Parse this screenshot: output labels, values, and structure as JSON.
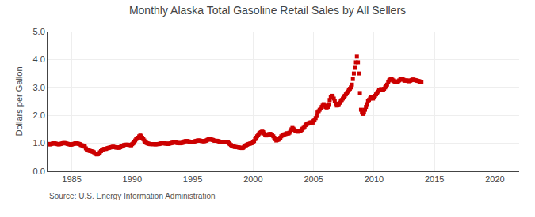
{
  "chart_data": {
    "type": "scatter",
    "title": "Monthly Alaska Total Gasoline Retail Sales by All Sellers",
    "y_label": "Dollars per Gallon",
    "annotations": [
      "Source: U.S. Energy Information Administration"
    ],
    "color": "#CC0000",
    "marker": "square",
    "grid": true,
    "xlim": [
      1983,
      2022
    ],
    "xticks": [
      1985,
      1990,
      1995,
      2000,
      2005,
      2010,
      2015,
      2020
    ],
    "ylim": [
      0.0,
      5.0
    ],
    "yticks": [
      {
        "value": 0.0,
        "label": "0.0"
      },
      {
        "value": 1.0,
        "label": "1.0"
      },
      {
        "value": 2.0,
        "label": "2.0"
      },
      {
        "value": 3.0,
        "label": "3.0"
      },
      {
        "value": 4.0,
        "label": "4.0"
      },
      {
        "value": 5.0,
        "label": "5.0"
      }
    ],
    "x": [
      1983.0,
      1983.08,
      1983.17,
      1983.25,
      1983.33,
      1983.42,
      1983.5,
      1983.58,
      1983.67,
      1983.75,
      1983.83,
      1983.92,
      1984.0,
      1984.08,
      1984.17,
      1984.25,
      1984.33,
      1984.42,
      1984.5,
      1984.58,
      1984.67,
      1984.75,
      1984.83,
      1984.92,
      1985.0,
      1985.08,
      1985.17,
      1985.25,
      1985.33,
      1985.42,
      1985.5,
      1985.58,
      1985.67,
      1985.75,
      1985.83,
      1985.92,
      1986.0,
      1986.08,
      1986.17,
      1986.25,
      1986.33,
      1986.42,
      1986.5,
      1986.58,
      1986.67,
      1986.75,
      1986.83,
      1986.92,
      1987.0,
      1987.08,
      1987.17,
      1987.25,
      1987.33,
      1987.42,
      1987.5,
      1987.58,
      1987.67,
      1987.75,
      1987.83,
      1987.92,
      1988.0,
      1988.08,
      1988.17,
      1988.25,
      1988.33,
      1988.42,
      1988.5,
      1988.58,
      1988.67,
      1988.75,
      1988.83,
      1988.92,
      1989.0,
      1989.08,
      1989.17,
      1989.25,
      1989.33,
      1989.42,
      1989.5,
      1989.58,
      1989.67,
      1989.75,
      1989.83,
      1989.92,
      1990.0,
      1990.08,
      1990.17,
      1990.25,
      1990.33,
      1990.42,
      1990.5,
      1990.58,
      1990.67,
      1990.75,
      1990.83,
      1990.92,
      1991.0,
      1991.08,
      1991.17,
      1991.25,
      1991.33,
      1991.42,
      1991.5,
      1991.58,
      1991.67,
      1991.75,
      1991.83,
      1991.92,
      1992.0,
      1992.08,
      1992.17,
      1992.25,
      1992.33,
      1992.42,
      1992.5,
      1992.58,
      1992.67,
      1992.75,
      1992.83,
      1992.92,
      1993.0,
      1993.08,
      1993.17,
      1993.25,
      1993.33,
      1993.42,
      1993.5,
      1993.58,
      1993.67,
      1993.75,
      1993.83,
      1993.92,
      1994.0,
      1994.08,
      1994.17,
      1994.25,
      1994.33,
      1994.42,
      1994.5,
      1994.58,
      1994.67,
      1994.75,
      1994.83,
      1994.92,
      1995.0,
      1995.08,
      1995.17,
      1995.25,
      1995.33,
      1995.42,
      1995.5,
      1995.58,
      1995.67,
      1995.75,
      1995.83,
      1995.92,
      1996.0,
      1996.08,
      1996.17,
      1996.25,
      1996.33,
      1996.42,
      1996.5,
      1996.58,
      1996.67,
      1996.75,
      1996.83,
      1996.92,
      1997.0,
      1997.08,
      1997.17,
      1997.25,
      1997.33,
      1997.42,
      1997.5,
      1997.58,
      1997.67,
      1997.75,
      1997.83,
      1997.92,
      1998.0,
      1998.08,
      1998.17,
      1998.25,
      1998.33,
      1998.42,
      1998.5,
      1998.58,
      1998.67,
      1998.75,
      1998.83,
      1998.92,
      1999.0,
      1999.08,
      1999.17,
      1999.25,
      1999.33,
      1999.42,
      1999.5,
      1999.58,
      1999.67,
      1999.75,
      1999.83,
      1999.92,
      2000.0,
      2000.08,
      2000.17,
      2000.25,
      2000.33,
      2000.42,
      2000.5,
      2000.58,
      2000.67,
      2000.75,
      2000.83,
      2000.92,
      2001.0,
      2001.08,
      2001.17,
      2001.25,
      2001.33,
      2001.42,
      2001.5,
      2001.58,
      2001.67,
      2001.75,
      2001.83,
      2001.92,
      2002.0,
      2002.08,
      2002.17,
      2002.25,
      2002.33,
      2002.42,
      2002.5,
      2002.58,
      2002.67,
      2002.75,
      2002.83,
      2002.92,
      2003.0,
      2003.08,
      2003.17,
      2003.25,
      2003.33,
      2003.42,
      2003.5,
      2003.58,
      2003.67,
      2003.75,
      2003.83,
      2003.92,
      2004.0,
      2004.08,
      2004.17,
      2004.25,
      2004.33,
      2004.42,
      2004.5,
      2004.58,
      2004.67,
      2004.75,
      2004.83,
      2004.92,
      2005.0,
      2005.08,
      2005.17,
      2005.25,
      2005.33,
      2005.42,
      2005.5,
      2005.58,
      2005.67,
      2005.75,
      2005.83,
      2005.92,
      2006.0,
      2006.08,
      2006.17,
      2006.25,
      2006.33,
      2006.42,
      2006.5,
      2006.58,
      2006.67,
      2006.75,
      2006.83,
      2006.92,
      2007.0,
      2007.08,
      2007.17,
      2007.25,
      2007.33,
      2007.42,
      2007.5,
      2007.58,
      2007.67,
      2007.75,
      2007.83,
      2007.92,
      2008.0,
      2008.08,
      2008.17,
      2008.25,
      2008.33,
      2008.42,
      2008.5,
      2008.58,
      2008.67,
      2008.75,
      2008.83,
      2008.92,
      2009.0,
      2009.08,
      2009.17,
      2009.25,
      2009.33,
      2009.42,
      2009.5,
      2009.58,
      2009.67,
      2009.75,
      2009.83,
      2009.92,
      2010.0,
      2010.08,
      2010.17,
      2010.25,
      2010.33,
      2010.42,
      2010.5,
      2010.58,
      2010.67,
      2010.75,
      2010.83,
      2010.92,
      2011.0,
      2011.08,
      2011.17,
      2011.25,
      2011.33,
      2011.42,
      2011.5,
      2011.58,
      2011.67,
      2011.75,
      2011.83,
      2011.92,
      2012.0,
      2012.08,
      2012.17,
      2012.25,
      2012.33,
      2012.42,
      2012.5,
      2012.58,
      2012.67,
      2012.75,
      2012.83,
      2012.92,
      2013.0,
      2013.08,
      2013.17,
      2013.25,
      2013.33,
      2013.42,
      2013.5,
      2013.58,
      2013.67,
      2013.75,
      2013.83,
      2013.92
    ],
    "values": [
      0.98,
      0.97,
      0.96,
      0.97,
      0.98,
      0.99,
      1.0,
      1.0,
      0.99,
      0.98,
      0.97,
      0.96,
      0.97,
      0.98,
      0.99,
      1.0,
      1.01,
      1.01,
      1.0,
      0.99,
      0.98,
      0.97,
      0.96,
      0.95,
      0.96,
      0.97,
      0.98,
      0.99,
      1.0,
      1.0,
      0.99,
      0.98,
      0.97,
      0.94,
      0.93,
      0.92,
      0.9,
      0.88,
      0.82,
      0.78,
      0.76,
      0.74,
      0.73,
      0.72,
      0.71,
      0.7,
      0.68,
      0.63,
      0.62,
      0.6,
      0.61,
      0.64,
      0.68,
      0.72,
      0.76,
      0.78,
      0.8,
      0.8,
      0.8,
      0.82,
      0.83,
      0.84,
      0.85,
      0.86,
      0.87,
      0.88,
      0.87,
      0.86,
      0.85,
      0.85,
      0.85,
      0.84,
      0.86,
      0.88,
      0.9,
      0.92,
      0.94,
      0.95,
      0.95,
      0.95,
      0.95,
      0.94,
      0.94,
      0.93,
      0.97,
      1.0,
      1.05,
      1.1,
      1.15,
      1.18,
      1.2,
      1.25,
      1.28,
      1.25,
      1.2,
      1.15,
      1.1,
      1.05,
      1.02,
      1.0,
      0.99,
      0.98,
      0.97,
      0.97,
      0.97,
      0.97,
      0.97,
      0.96,
      0.97,
      0.97,
      0.97,
      0.98,
      0.99,
      1.0,
      1.0,
      1.0,
      1.0,
      0.99,
      0.99,
      0.98,
      0.98,
      0.99,
      1.0,
      1.01,
      1.02,
      1.03,
      1.03,
      1.03,
      1.02,
      1.01,
      1.01,
      1.0,
      1.01,
      1.01,
      1.02,
      1.05,
      1.07,
      1.08,
      1.08,
      1.08,
      1.07,
      1.06,
      1.05,
      1.05,
      1.05,
      1.06,
      1.07,
      1.08,
      1.09,
      1.1,
      1.1,
      1.1,
      1.09,
      1.08,
      1.08,
      1.07,
      1.08,
      1.09,
      1.11,
      1.13,
      1.14,
      1.15,
      1.14,
      1.13,
      1.12,
      1.1,
      1.09,
      1.09,
      1.09,
      1.08,
      1.07,
      1.06,
      1.05,
      1.05,
      1.05,
      1.06,
      1.06,
      1.05,
      1.04,
      1.03,
      1.0,
      0.97,
      0.94,
      0.91,
      0.89,
      0.88,
      0.87,
      0.87,
      0.86,
      0.86,
      0.85,
      0.84,
      0.84,
      0.83,
      0.84,
      0.87,
      0.9,
      0.93,
      0.95,
      0.97,
      0.98,
      0.99,
      1.0,
      1.01,
      1.05,
      1.08,
      1.15,
      1.2,
      1.25,
      1.3,
      1.35,
      1.38,
      1.4,
      1.42,
      1.4,
      1.35,
      1.3,
      1.28,
      1.3,
      1.32,
      1.33,
      1.34,
      1.32,
      1.3,
      1.25,
      1.2,
      1.15,
      1.1,
      1.12,
      1.13,
      1.15,
      1.2,
      1.25,
      1.28,
      1.3,
      1.32,
      1.33,
      1.35,
      1.36,
      1.35,
      1.38,
      1.42,
      1.5,
      1.55,
      1.52,
      1.48,
      1.45,
      1.43,
      1.42,
      1.42,
      1.43,
      1.45,
      1.48,
      1.52,
      1.55,
      1.6,
      1.65,
      1.68,
      1.7,
      1.72,
      1.73,
      1.75,
      1.75,
      1.74,
      1.8,
      1.85,
      1.9,
      2.0,
      2.1,
      2.15,
      2.2,
      2.25,
      2.3,
      2.35,
      2.4,
      2.35,
      2.3,
      2.28,
      2.3,
      2.4,
      2.55,
      2.65,
      2.7,
      2.68,
      2.6,
      2.5,
      2.42,
      2.35,
      2.38,
      2.4,
      2.45,
      2.5,
      2.55,
      2.6,
      2.65,
      2.7,
      2.75,
      2.8,
      2.85,
      2.9,
      2.95,
      3.0,
      3.1,
      3.3,
      3.5,
      3.7,
      3.9,
      4.1,
      3.9,
      3.5,
      2.8,
      2.2,
      2.1,
      2.05,
      2.1,
      2.2,
      2.3,
      2.4,
      2.5,
      2.55,
      2.6,
      2.65,
      2.65,
      2.6,
      2.65,
      2.7,
      2.75,
      2.8,
      2.85,
      2.9,
      2.92,
      2.94,
      2.93,
      2.9,
      2.95,
      3.0,
      3.05,
      3.1,
      3.2,
      3.25,
      3.28,
      3.3,
      3.28,
      3.25,
      3.22,
      3.2,
      3.2,
      3.2,
      3.22,
      3.25,
      3.28,
      3.3,
      3.32,
      3.28,
      3.25,
      3.24,
      3.25,
      3.25,
      3.23,
      3.22,
      3.24,
      3.26,
      3.28,
      3.28,
      3.27,
      3.26,
      3.25,
      3.24,
      3.23,
      3.22,
      3.2,
      3.18
    ]
  }
}
